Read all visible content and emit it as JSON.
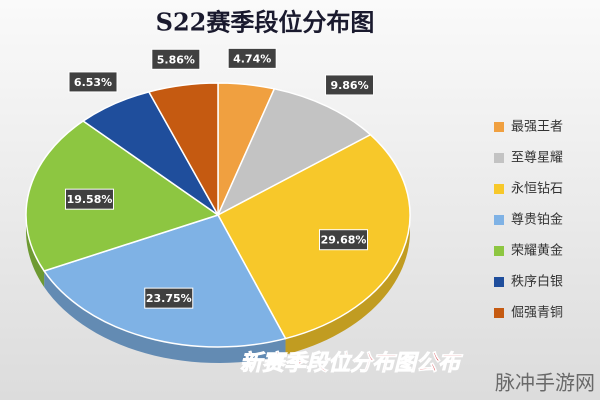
{
  "chart_data": {
    "type": "pie",
    "title": "S22赛季段位分布图",
    "categories": [
      "最强王者",
      "至尊星耀",
      "永恒钻石",
      "尊贵铂金",
      "荣耀黄金",
      "秩序白银",
      "倔强青铜"
    ],
    "values": [
      4.74,
      9.86,
      29.68,
      23.75,
      19.58,
      6.53,
      5.86
    ],
    "value_labels": [
      "4.74%",
      "9.86%",
      "29.68%",
      "23.75%",
      "19.58%",
      "6.53%",
      "5.86%"
    ],
    "colors": [
      "#f0a040",
      "#c3c3c3",
      "#f7c82a",
      "#7fb2e5",
      "#8dc641",
      "#1f4e9c",
      "#c55a11"
    ],
    "legend": "right",
    "annotations": [
      "新赛季段位分布图公布",
      "脉冲手游网"
    ]
  }
}
